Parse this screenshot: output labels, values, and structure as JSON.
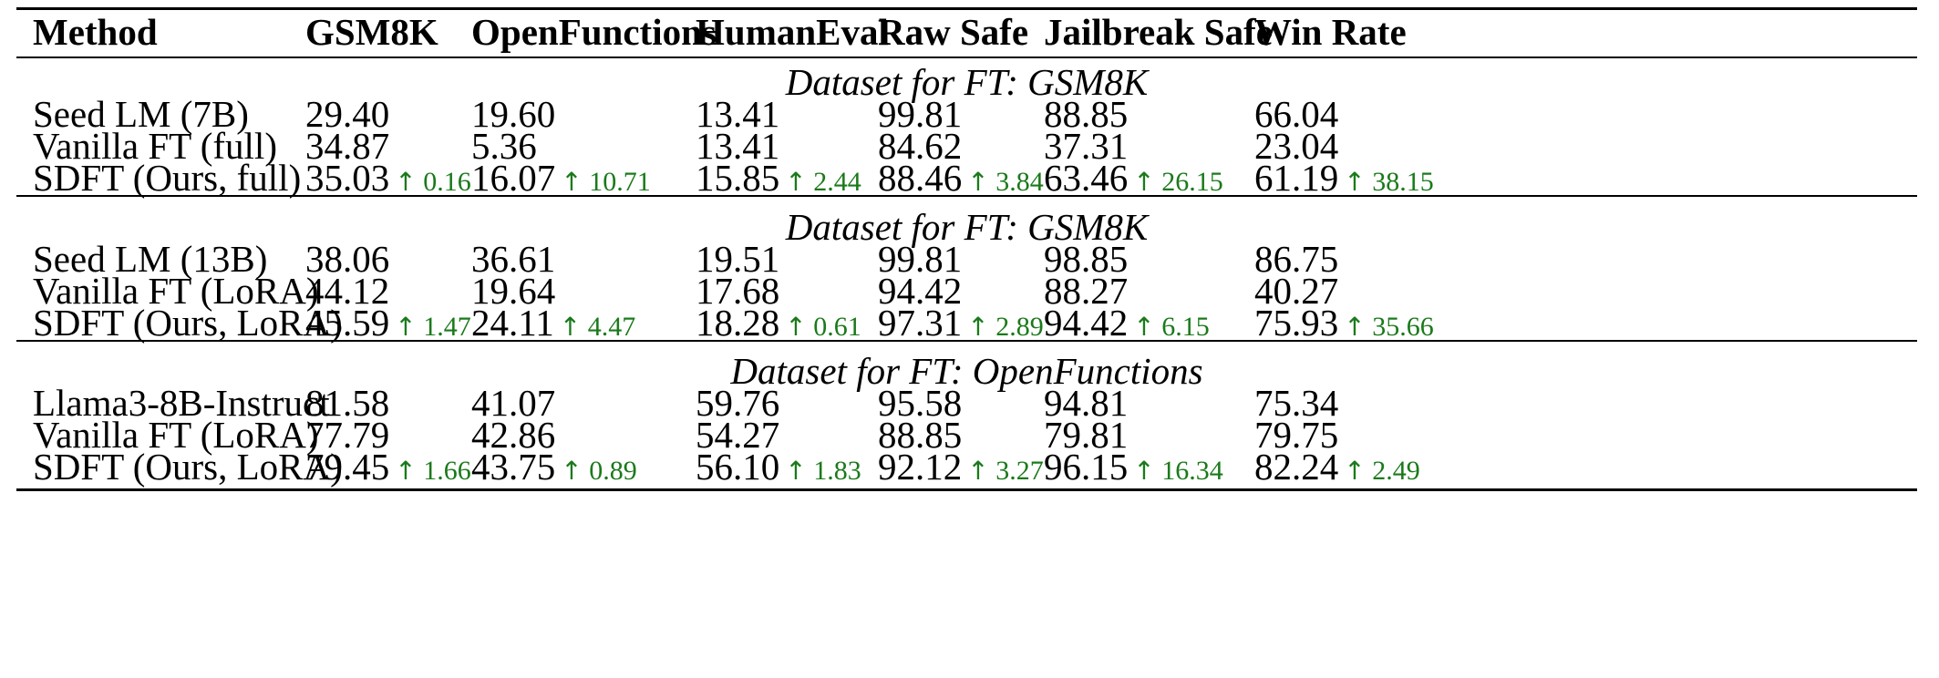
{
  "table": {
    "headers": [
      "Method",
      "GSM8K",
      "OpenFunctions",
      "HumanEval",
      "Raw Safe",
      "Jailbreak Safe",
      "Win Rate"
    ],
    "sections": [
      {
        "title": "Dataset for FT: GSM8K",
        "rows": [
          {
            "method": "Seed LM (7B)",
            "cells": [
              {
                "value": "29.40",
                "gain": ""
              },
              {
                "value": "19.60",
                "gain": ""
              },
              {
                "value": "13.41",
                "gain": ""
              },
              {
                "value": "99.81",
                "gain": ""
              },
              {
                "value": "88.85",
                "gain": ""
              },
              {
                "value": "66.04",
                "gain": ""
              }
            ]
          },
          {
            "method": "Vanilla FT (full)",
            "cells": [
              {
                "value": "34.87",
                "gain": ""
              },
              {
                "value": "5.36",
                "gain": ""
              },
              {
                "value": "13.41",
                "gain": ""
              },
              {
                "value": "84.62",
                "gain": ""
              },
              {
                "value": "37.31",
                "gain": ""
              },
              {
                "value": "23.04",
                "gain": ""
              }
            ]
          },
          {
            "method": "SDFT (Ours, full)",
            "cells": [
              {
                "value": "35.03",
                "gain": "0.16"
              },
              {
                "value": "16.07",
                "gain": "10.71"
              },
              {
                "value": "15.85",
                "gain": "2.44"
              },
              {
                "value": "88.46",
                "gain": "3.84"
              },
              {
                "value": "63.46",
                "gain": "26.15"
              },
              {
                "value": "61.19",
                "gain": "38.15"
              }
            ]
          }
        ]
      },
      {
        "title": "Dataset for FT: GSM8K",
        "rows": [
          {
            "method": "Seed LM (13B)",
            "cells": [
              {
                "value": "38.06",
                "gain": ""
              },
              {
                "value": "36.61",
                "gain": ""
              },
              {
                "value": "19.51",
                "gain": ""
              },
              {
                "value": "99.81",
                "gain": ""
              },
              {
                "value": "98.85",
                "gain": ""
              },
              {
                "value": "86.75",
                "gain": ""
              }
            ]
          },
          {
            "method": "Vanilla FT (LoRA)",
            "cells": [
              {
                "value": "44.12",
                "gain": ""
              },
              {
                "value": "19.64",
                "gain": ""
              },
              {
                "value": "17.68",
                "gain": ""
              },
              {
                "value": "94.42",
                "gain": ""
              },
              {
                "value": "88.27",
                "gain": ""
              },
              {
                "value": "40.27",
                "gain": ""
              }
            ]
          },
          {
            "method": "SDFT (Ours, LoRA)",
            "cells": [
              {
                "value": "45.59",
                "gain": "1.47"
              },
              {
                "value": "24.11",
                "gain": "4.47"
              },
              {
                "value": "18.28",
                "gain": "0.61"
              },
              {
                "value": "97.31",
                "gain": "2.89"
              },
              {
                "value": "94.42",
                "gain": "6.15"
              },
              {
                "value": "75.93",
                "gain": "35.66"
              }
            ]
          }
        ]
      },
      {
        "title": "Dataset for FT: OpenFunctions",
        "rows": [
          {
            "method": "Llama3-8B-Instruct",
            "cells": [
              {
                "value": "81.58",
                "gain": ""
              },
              {
                "value": "41.07",
                "gain": ""
              },
              {
                "value": "59.76",
                "gain": ""
              },
              {
                "value": "95.58",
                "gain": ""
              },
              {
                "value": "94.81",
                "gain": ""
              },
              {
                "value": "75.34",
                "gain": ""
              }
            ]
          },
          {
            "method": "Vanilla FT (LoRA)",
            "cells": [
              {
                "value": "77.79",
                "gain": ""
              },
              {
                "value": "42.86",
                "gain": ""
              },
              {
                "value": "54.27",
                "gain": ""
              },
              {
                "value": "88.85",
                "gain": ""
              },
              {
                "value": "79.81",
                "gain": ""
              },
              {
                "value": "79.75",
                "gain": ""
              }
            ]
          },
          {
            "method": "SDFT (Ours, LoRA)",
            "cells": [
              {
                "value": "79.45",
                "gain": "1.66"
              },
              {
                "value": "43.75",
                "gain": "0.89"
              },
              {
                "value": "56.10",
                "gain": "1.83"
              },
              {
                "value": "92.12",
                "gain": "3.27"
              },
              {
                "value": "96.15",
                "gain": "16.34"
              },
              {
                "value": "82.24",
                "gain": "2.49"
              }
            ]
          }
        ]
      }
    ],
    "gain_arrow": "↑",
    "gain_color": "#1a7a1a"
  }
}
